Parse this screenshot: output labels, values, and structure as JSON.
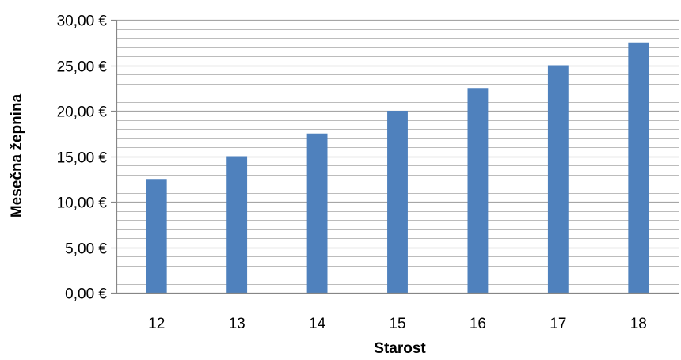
{
  "chart_data": {
    "type": "bar",
    "title": "",
    "xlabel": "Starost",
    "ylabel": "Mesečna žepnina",
    "categories": [
      "12",
      "13",
      "14",
      "15",
      "16",
      "17",
      "18"
    ],
    "values": [
      12.5,
      15,
      17.5,
      20,
      22.5,
      25,
      27.5
    ],
    "ylim": [
      0,
      30
    ],
    "y_major_step": 5,
    "y_minor_step": 1,
    "y_tick_labels": [
      "0,00 €",
      "5,00 €",
      "10,00 €",
      "15,00 €",
      "20,00 €",
      "25,00 €",
      "30,00 €"
    ],
    "grid": true,
    "legend": "none",
    "colors": {
      "bar": "#4f81bd",
      "gridline": "#a6a6a6",
      "axis": "#868686",
      "text": "#000000"
    }
  }
}
